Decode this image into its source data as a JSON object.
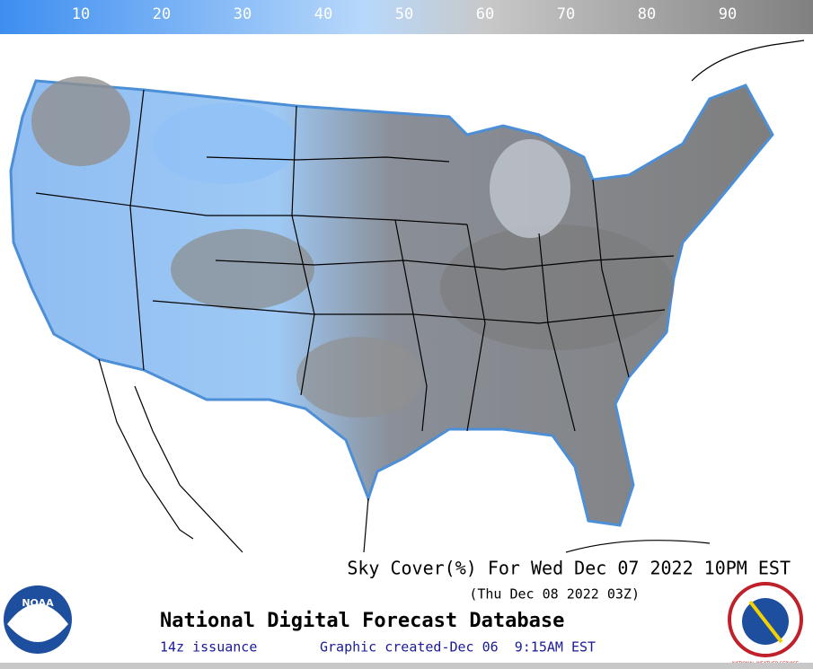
{
  "colorbar": {
    "ticks": [
      10,
      20,
      30,
      40,
      50,
      60,
      70,
      80,
      90
    ]
  },
  "header": {
    "title": "Sky Cover(%) For Wed Dec 07 2022 10PM EST",
    "subtitle": "(Thu Dec 08 2022 03Z)"
  },
  "footer": {
    "product": "National Digital Forecast Database",
    "issuance": "14z issuance",
    "created": "Graphic created-Dec 06  9:15AM EST"
  },
  "logos": {
    "noaa": "NOAA",
    "nws": "NATIONAL WEATHER SERVICE"
  }
}
